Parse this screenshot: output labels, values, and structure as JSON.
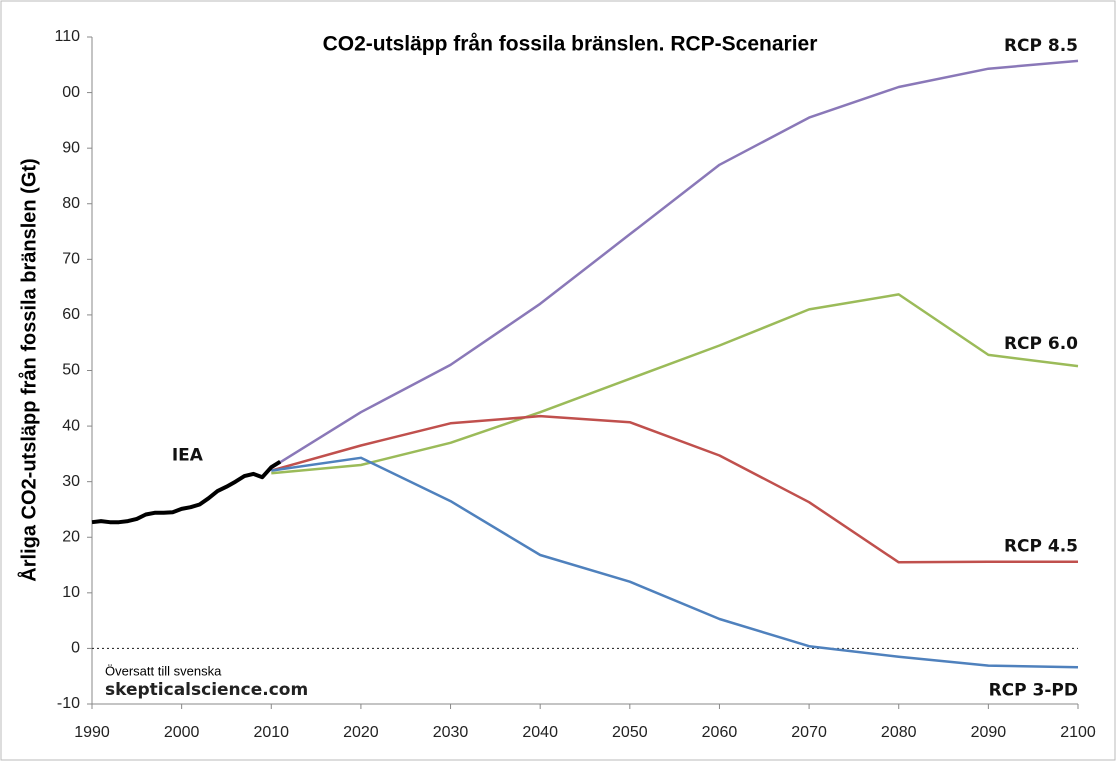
{
  "chart_data": {
    "type": "line",
    "title": "CO2-utsläpp från fossila bränslen. RCP-Scenarier",
    "y_label": "Årliga CO2-utsläpp från fossila bränslen (Gt)",
    "annotations": [
      "Översatt till svenska",
      "skepticalscience.com"
    ],
    "xlim": [
      1990,
      2100
    ],
    "ylim": [
      -10,
      110
    ],
    "xticks": [
      1990,
      2000,
      2010,
      2020,
      2030,
      2040,
      2050,
      2060,
      2070,
      2080,
      2090,
      2100
    ],
    "yticks": [
      -10,
      0,
      10,
      20,
      30,
      40,
      50,
      60,
      70,
      80,
      90,
      {
        "value": 100,
        "label": "00"
      },
      110
    ],
    "hline": 0,
    "series": [
      {
        "name": "RCP 8.5",
        "color": "#8a78b8",
        "x": [
          2010,
          2020,
          2030,
          2040,
          2050,
          2060,
          2070,
          2080,
          2090,
          2100
        ],
        "values": [
          32.5,
          42.5,
          51,
          62,
          74.5,
          87,
          95.5,
          101,
          104.3,
          105.7
        ]
      },
      {
        "name": "RCP 6.0",
        "color": "#9bbb59",
        "x": [
          2010,
          2020,
          2030,
          2040,
          2050,
          2060,
          2070,
          2080,
          2090,
          2100
        ],
        "values": [
          31.5,
          33,
          37,
          42.5,
          48.5,
          54.5,
          61,
          63.7,
          52.8,
          50.8
        ]
      },
      {
        "name": "RCP 4.5",
        "color": "#c0504d",
        "x": [
          2010,
          2020,
          2030,
          2040,
          2050,
          2060,
          2070,
          2080,
          2090,
          2100
        ],
        "values": [
          32,
          36.5,
          40.5,
          41.8,
          40.7,
          34.7,
          26.3,
          15.5,
          15.6,
          15.6
        ]
      },
      {
        "name": "RCP 3-PD",
        "color": "#4f81bd",
        "x": [
          2010,
          2020,
          2030,
          2040,
          2050,
          2060,
          2070,
          2080,
          2090,
          2100
        ],
        "values": [
          32,
          34.3,
          26.5,
          16.8,
          12,
          5.3,
          0.4,
          -1.5,
          -3.1,
          -3.4
        ]
      },
      {
        "name": "IEA",
        "color": "#000000",
        "x": [
          1990,
          1991,
          1992,
          1993,
          1994,
          1995,
          1996,
          1997,
          1998,
          1999,
          2000,
          2001,
          2002,
          2003,
          2004,
          2005,
          2006,
          2007,
          2008,
          2009,
          2010,
          2011
        ],
        "values": [
          22.7,
          22.9,
          22.7,
          22.7,
          22.9,
          23.3,
          24.1,
          24.4,
          24.4,
          24.5,
          25.1,
          25.4,
          25.9,
          27.0,
          28.3,
          29.1,
          30.0,
          31.0,
          31.4,
          30.8,
          32.6,
          33.6
        ]
      }
    ]
  }
}
